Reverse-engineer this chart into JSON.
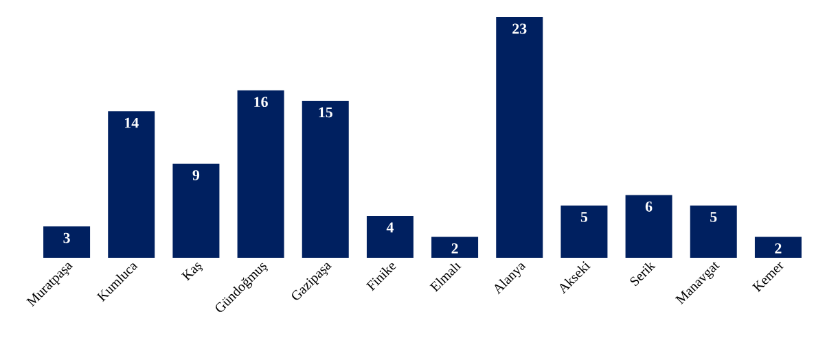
{
  "chart_data": {
    "type": "bar",
    "categories": [
      "Muratpaşa",
      "Kumluca",
      "Kaş",
      "Gündoğmuş",
      "Gazipaşa",
      "Finike",
      "Elmalı",
      "Alanya",
      "Akseki",
      "Serik",
      "Manavgat",
      "Kemer"
    ],
    "values": [
      3,
      14,
      9,
      16,
      15,
      4,
      2,
      23,
      5,
      6,
      5,
      2
    ],
    "color": "#002060",
    "data_labels": true
  }
}
